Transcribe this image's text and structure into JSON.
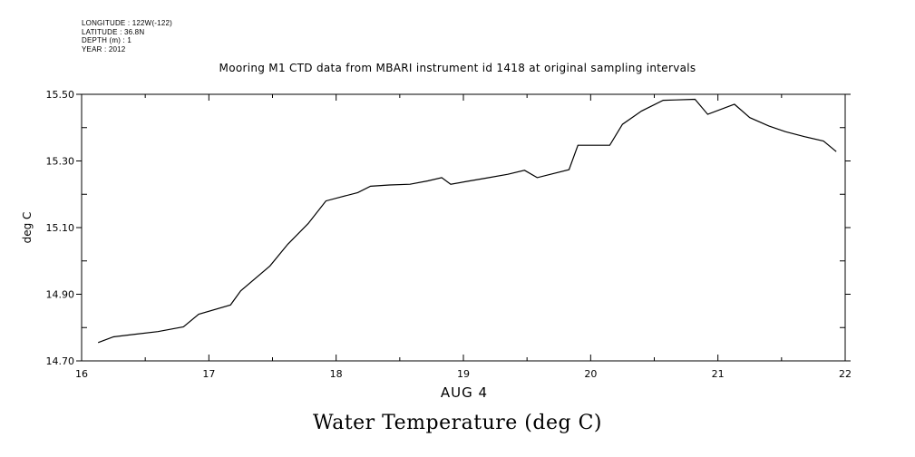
{
  "header": {
    "meta_lines": [
      "LONGITUDE : 122W(-122)",
      "LATITUDE : 36.8N",
      "DEPTH (m) : 1",
      "YEAR : 2012"
    ]
  },
  "chart_data": {
    "type": "line",
    "title": "Mooring M1 CTD data from MBARI instrument id 1418 at original sampling intervals",
    "xlabel": "AUG 4",
    "ylabel": "deg C",
    "footer_title": "Water Temperature (deg C)",
    "xlim": [
      16,
      22
    ],
    "ylim": [
      14.7,
      15.5
    ],
    "x_ticks": [
      16,
      17,
      18,
      19,
      20,
      21,
      22
    ],
    "y_ticks": [
      14.7,
      14.9,
      15.1,
      15.3,
      15.5
    ],
    "y_tick_labels": [
      "14.70",
      "14.90",
      "15.10",
      "15.30",
      "15.50"
    ],
    "grid": false,
    "series": [
      {
        "x": [
          16.13,
          16.25,
          16.42,
          16.6,
          16.8,
          16.92,
          17.17,
          17.25,
          17.48,
          17.62,
          17.78,
          17.92,
          18.17,
          18.27,
          18.42,
          18.58,
          18.72,
          18.83,
          18.9,
          19.05,
          19.17,
          19.35,
          19.48,
          19.58,
          19.83,
          19.9,
          20.15,
          20.25,
          20.4,
          20.57,
          20.67,
          20.82,
          20.92,
          21.13,
          21.25,
          21.4,
          21.53,
          21.68,
          21.83,
          21.93
        ],
        "y": [
          14.755,
          14.772,
          14.78,
          14.788,
          14.802,
          14.84,
          14.868,
          14.91,
          14.985,
          15.05,
          15.112,
          15.18,
          15.205,
          15.224,
          15.228,
          15.23,
          15.24,
          15.25,
          15.23,
          15.24,
          15.248,
          15.26,
          15.272,
          15.25,
          15.274,
          15.347,
          15.347,
          15.41,
          15.45,
          15.482,
          15.483,
          15.485,
          15.44,
          15.47,
          15.43,
          15.405,
          15.388,
          15.373,
          15.36,
          15.328
        ]
      }
    ]
  }
}
